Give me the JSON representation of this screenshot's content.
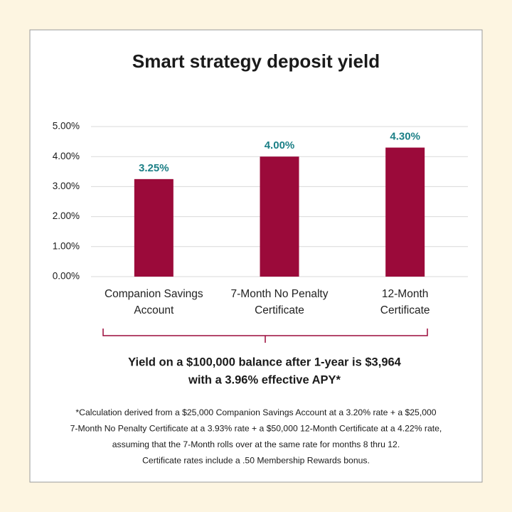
{
  "chart_data": {
    "type": "bar",
    "title": "Smart strategy deposit yield",
    "categories": [
      "Companion Savings\nAccount",
      "7-Month No Penalty\nCertificate",
      "12-Month\nCertificate"
    ],
    "values": [
      3.25,
      4.0,
      4.3
    ],
    "value_labels": [
      "3.25%",
      "4.00%",
      "4.30%"
    ],
    "color": "#9b0a3a",
    "label_color": "#1b7f86",
    "ylim": [
      0,
      5
    ],
    "yticks": [
      {
        "value": 0,
        "label": "0.00%"
      },
      {
        "value": 1,
        "label": "1.00%"
      },
      {
        "value": 2,
        "label": "2.00%"
      },
      {
        "value": 3,
        "label": "3.00%"
      },
      {
        "value": 4,
        "label": "4.00%"
      },
      {
        "value": 5,
        "label": "5.00%"
      }
    ],
    "grid": true,
    "summary": [
      "Yield on a $100,000 balance after 1-year is $3,964",
      "with a 3.96% effective APY*"
    ],
    "footnote": [
      "*Calculation derived from a $25,000 Companion Savings Account at a 3.20% rate + a $25,000",
      "7-Month No Penalty Certificate at a 3.93% rate + a $50,000 12-Month Certificate at a 4.22% rate,",
      "assuming that the 7-Month rolls over at the same rate for months 8 thru 12.",
      "Certificate rates include a .50 Membership Rewards bonus."
    ]
  }
}
